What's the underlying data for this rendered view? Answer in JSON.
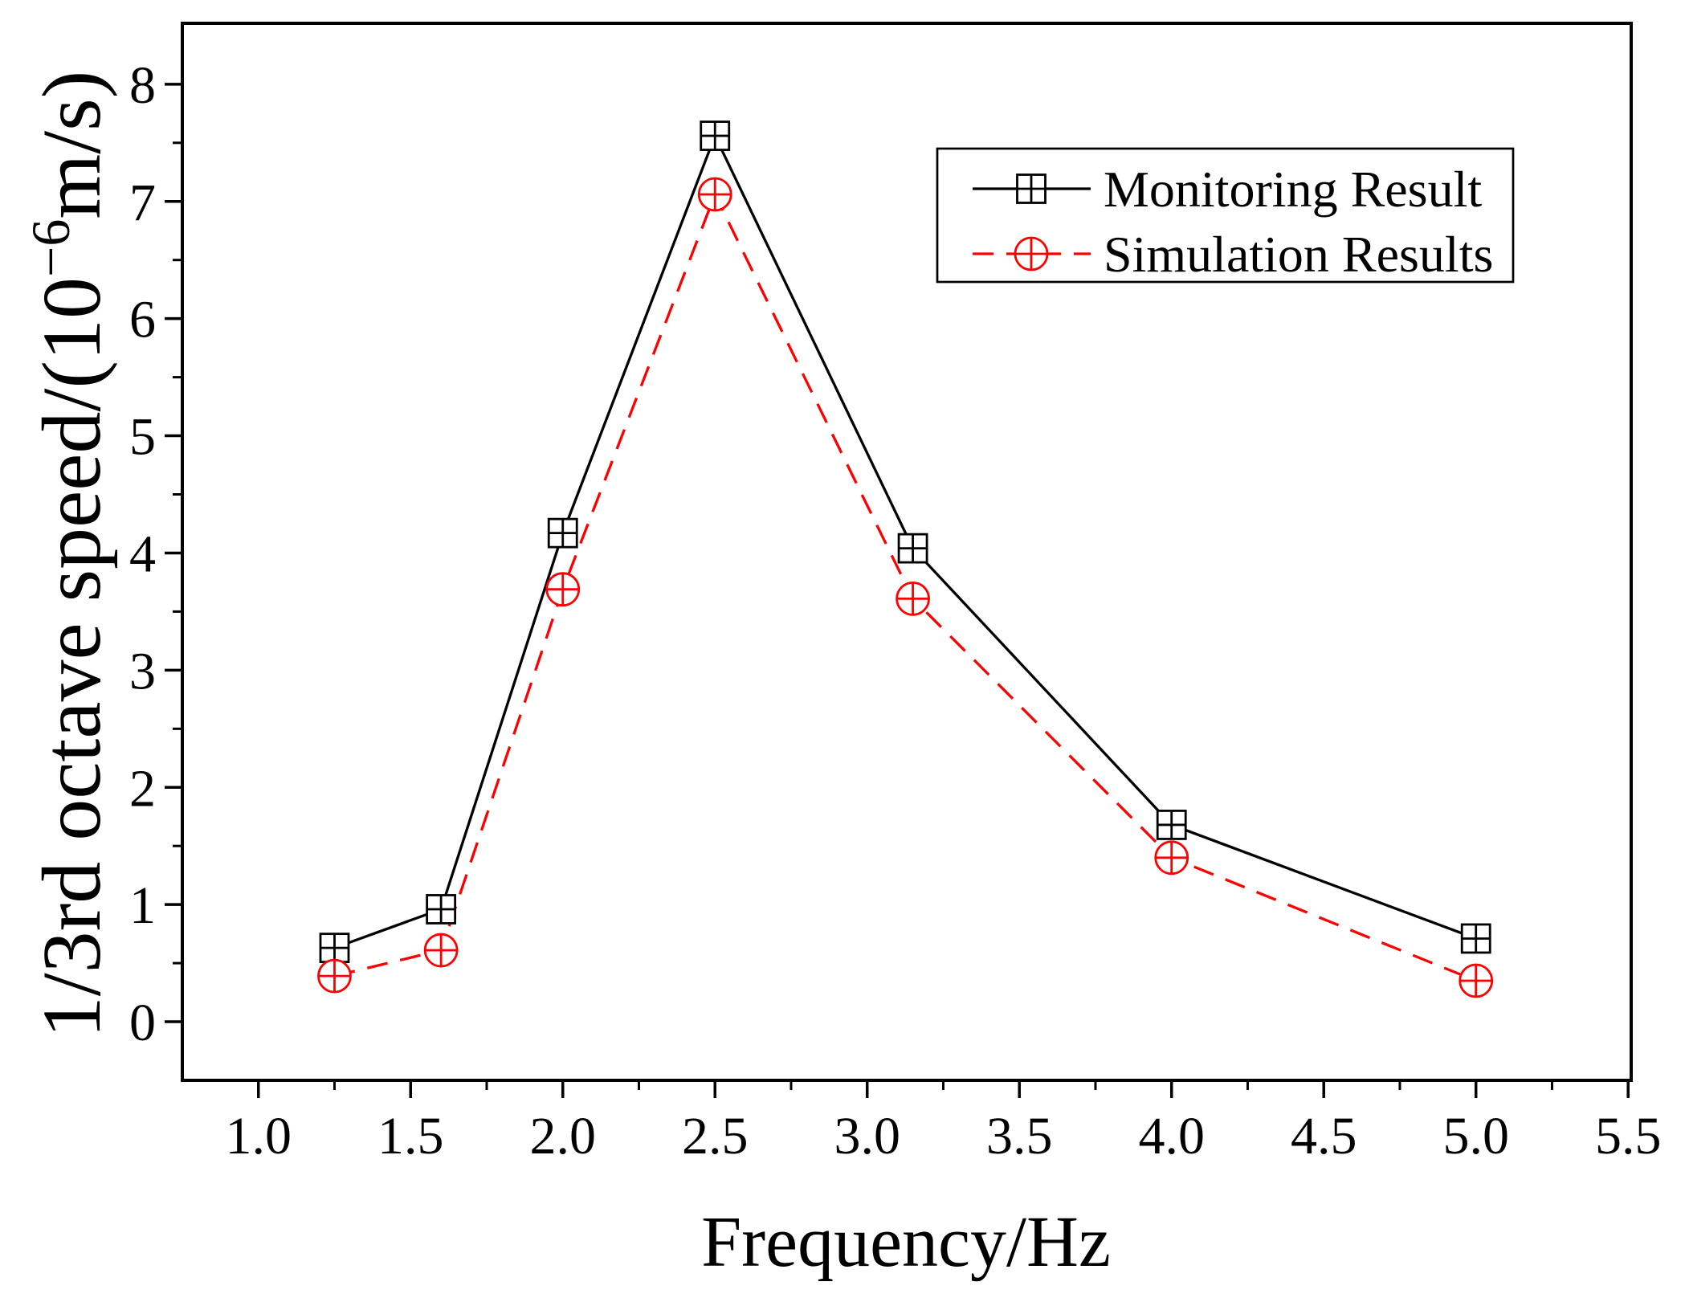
{
  "chart_data": {
    "type": "line",
    "xlabel": "Frequency/Hz",
    "ylabel": {
      "prefix": "1/3rd octave speed/(10",
      "superscript": "−6",
      "suffix": "m/s)"
    },
    "xlim": [
      0.75,
      5.51
    ],
    "ylim": [
      -0.5,
      8.52
    ],
    "grid": false,
    "x_ticks": {
      "values": [
        1.0,
        1.5,
        2.0,
        2.5,
        3.0,
        3.5,
        4.0,
        4.5,
        5.0,
        5.5
      ],
      "labels": [
        "1.0",
        "1.5",
        "2.0",
        "2.5",
        "3.0",
        "3.5",
        "4.0",
        "4.5",
        "5.0",
        "5.5"
      ]
    },
    "y_ticks": {
      "values": [
        0,
        1,
        2,
        3,
        4,
        5,
        6,
        7,
        8
      ],
      "labels": [
        "0",
        "1",
        "2",
        "3",
        "4",
        "5",
        "6",
        "7",
        "8"
      ]
    },
    "legend": {
      "position": "top-right"
    },
    "x": [
      1.25,
      1.6,
      2.0,
      2.5,
      3.15,
      4.0,
      5.0
    ],
    "series": [
      {
        "name": "Monitoring Result",
        "values": [
          0.63,
          0.96,
          4.17,
          7.56,
          4.04,
          1.68,
          0.71
        ],
        "color": "#000000",
        "line_style": "solid",
        "marker": "square-plus"
      },
      {
        "name": "Simulation Results",
        "values": [
          0.39,
          0.61,
          3.69,
          7.06,
          3.61,
          1.4,
          0.35
        ],
        "color": "#ff0000",
        "line_style": "dashed",
        "marker": "circle-plus"
      }
    ]
  }
}
